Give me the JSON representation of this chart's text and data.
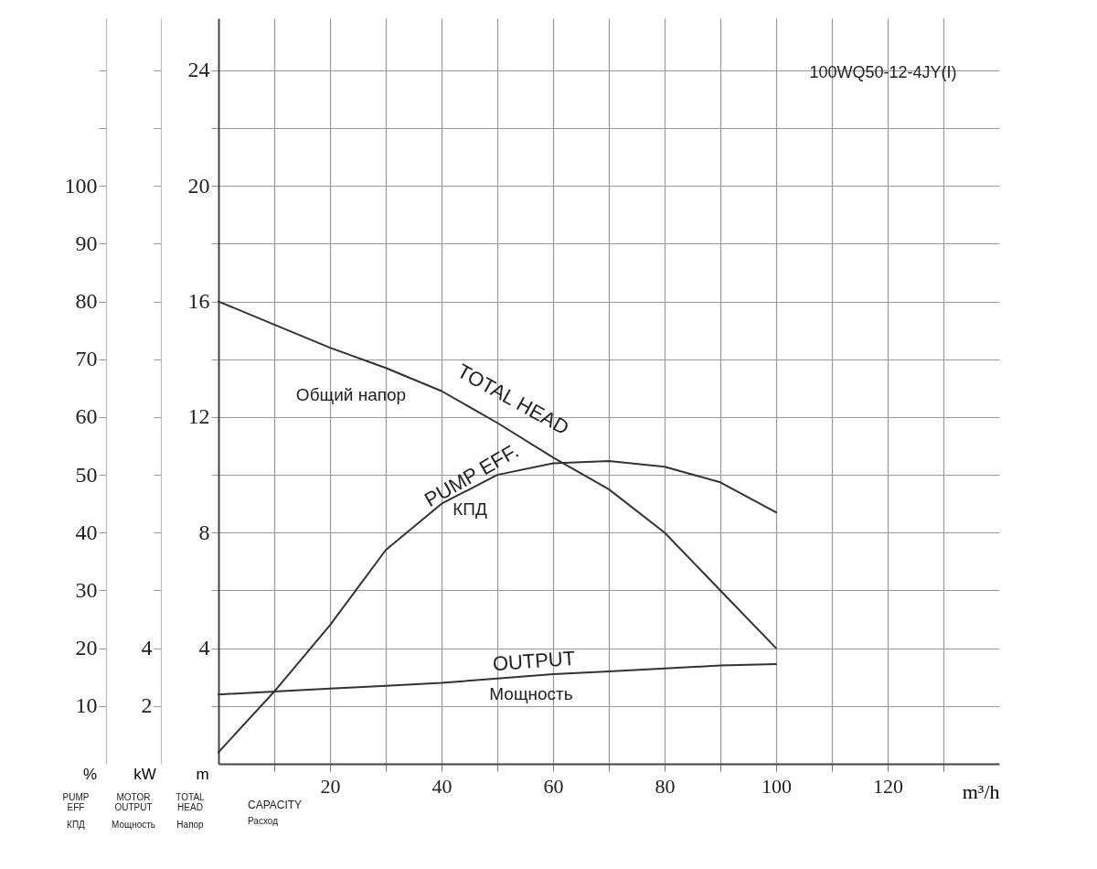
{
  "chart_data": {
    "type": "line",
    "x": [
      0,
      10,
      20,
      30,
      40,
      50,
      60,
      70,
      80,
      90,
      100
    ],
    "series": [
      {
        "color": "#333333",
        "values": [
          16,
          15.2,
          14.4,
          13.7,
          12.9,
          11.8,
          10.6,
          9.5,
          8.0,
          6.0,
          4.0
        ]
      },
      {
        "color": "#333333",
        "axis": "y2",
        "values": [
          2.4,
          2.5,
          2.6,
          2.7,
          2.8,
          2.95,
          3.1,
          3.2,
          3.3,
          3.4,
          3.45
        ]
      },
      {
        "color": "#333333",
        "axis": "y3",
        "values": [
          2,
          12.5,
          24,
          37,
          45,
          50,
          52,
          52.4,
          51.4,
          48.7,
          43.5
        ]
      }
    ],
    "xlabel": "m³/h",
    "ylabel": "m",
    "y2label": "kW",
    "y3label": "%",
    "xlim": [
      0,
      140
    ],
    "xticks": [
      {
        "value": 10,
        "label": null
      },
      20,
      {
        "value": 30,
        "label": null
      },
      40,
      {
        "value": 50,
        "label": null
      },
      60,
      {
        "value": 70,
        "label": null
      },
      80,
      {
        "value": 90,
        "label": null
      },
      100,
      {
        "value": 110,
        "label": null
      },
      120,
      {
        "value": 130,
        "label": null
      }
    ],
    "ylim": [
      0,
      25.8
    ],
    "yticks": [
      {
        "value": 2,
        "label": null
      },
      4,
      {
        "value": 6,
        "label": null
      },
      8,
      {
        "value": 10,
        "label": null
      },
      12,
      {
        "value": 14,
        "label": null
      },
      16,
      {
        "value": 18,
        "label": null
      },
      20,
      {
        "value": 22,
        "label": null
      },
      24
    ],
    "y2lim": [
      0,
      25.8
    ],
    "y2ticks": [
      2,
      4,
      {
        "value": 6,
        "label": null
      },
      {
        "value": 8,
        "label": null
      },
      {
        "value": 10,
        "label": null
      },
      {
        "value": 12,
        "label": null
      },
      {
        "value": 14,
        "label": null
      },
      {
        "value": 16,
        "label": null
      },
      {
        "value": 18,
        "label": null
      },
      {
        "value": 20,
        "label": null
      },
      {
        "value": 22,
        "label": null
      },
      {
        "value": 24,
        "label": null
      }
    ],
    "y3lim": [
      0,
      129
    ],
    "y3ticks": [
      10,
      20,
      30,
      40,
      50,
      60,
      70,
      80,
      90,
      100,
      {
        "value": 110,
        "label": null
      },
      {
        "value": 120,
        "label": null
      }
    ],
    "grid": true,
    "marker": "none",
    "line_style": "solid",
    "annotations": [
      "Общий напор",
      "TOTAL HEAD",
      "PUMP EFF.",
      "КПД",
      "OUTPUT",
      "Мощность",
      "100WQ50-12-4JY(I)",
      "PUMP EFF",
      "КПД",
      "MOTOR OUTPUT",
      "Мощность",
      "TOTAL HEAD",
      "Напор",
      "CAPACITY",
      "Расход"
    ]
  }
}
